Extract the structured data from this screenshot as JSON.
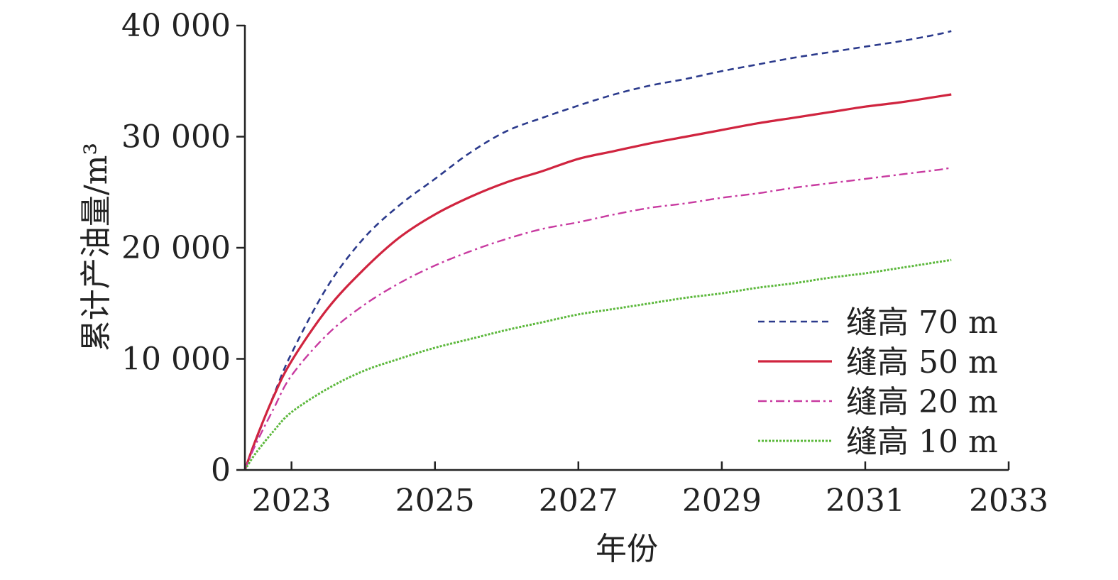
{
  "chart_data": {
    "type": "line",
    "xlabel": "年份",
    "ylabel": "累计产油量/m³",
    "xlim": [
      2022.35,
      2033
    ],
    "ylim": [
      0,
      40000
    ],
    "x_ticks": [
      2023,
      2025,
      2027,
      2029,
      2031,
      2033
    ],
    "x_tick_labels": [
      "2023",
      "2025",
      "2027",
      "2029",
      "2031",
      "2033"
    ],
    "y_ticks": [
      0,
      10000,
      20000,
      30000,
      40000
    ],
    "y_tick_labels": [
      "0",
      "10 000",
      "20 000",
      "30 000",
      "40 000"
    ],
    "grid": false,
    "legend_position": "lower-right",
    "x": [
      2022.35,
      2022.5,
      2022.75,
      2023,
      2023.5,
      2024,
      2024.5,
      2025,
      2025.5,
      2026,
      2026.5,
      2027,
      2027.5,
      2028,
      2028.5,
      2029,
      2029.5,
      2030,
      2030.5,
      2031,
      2031.5,
      2032,
      2032.2
    ],
    "series": [
      {
        "name": "缝高 70 m",
        "color": "#2b3a8c",
        "dash": "dashed",
        "values": [
          0,
          2600,
          6700,
          10500,
          16500,
          20800,
          23800,
          26200,
          28600,
          30500,
          31700,
          32800,
          33800,
          34600,
          35200,
          35900,
          36500,
          37100,
          37600,
          38100,
          38600,
          39200,
          39500
        ]
      },
      {
        "name": "缝高 50 m",
        "color": "#d0243f",
        "dash": "solid",
        "values": [
          0,
          2700,
          6600,
          9800,
          14500,
          18000,
          20900,
          23000,
          24600,
          25900,
          26900,
          28000,
          28700,
          29400,
          30000,
          30600,
          31200,
          31700,
          32200,
          32700,
          33100,
          33600,
          33800
        ]
      },
      {
        "name": "缝高 20 m",
        "color": "#c83aa0",
        "dash": "dashdot",
        "values": [
          0,
          2300,
          5500,
          8500,
          12200,
          14800,
          16800,
          18400,
          19700,
          20800,
          21700,
          22300,
          23000,
          23600,
          24000,
          24500,
          24900,
          25400,
          25800,
          26200,
          26600,
          27000,
          27200
        ]
      },
      {
        "name": "缝高 10 m",
        "color": "#5cb83c",
        "dash": "dotted",
        "values": [
          0,
          1500,
          3500,
          5200,
          7300,
          8900,
          10000,
          11000,
          11800,
          12600,
          13300,
          14000,
          14500,
          15000,
          15500,
          15900,
          16400,
          16800,
          17300,
          17700,
          18200,
          18700,
          18900
        ]
      }
    ]
  }
}
